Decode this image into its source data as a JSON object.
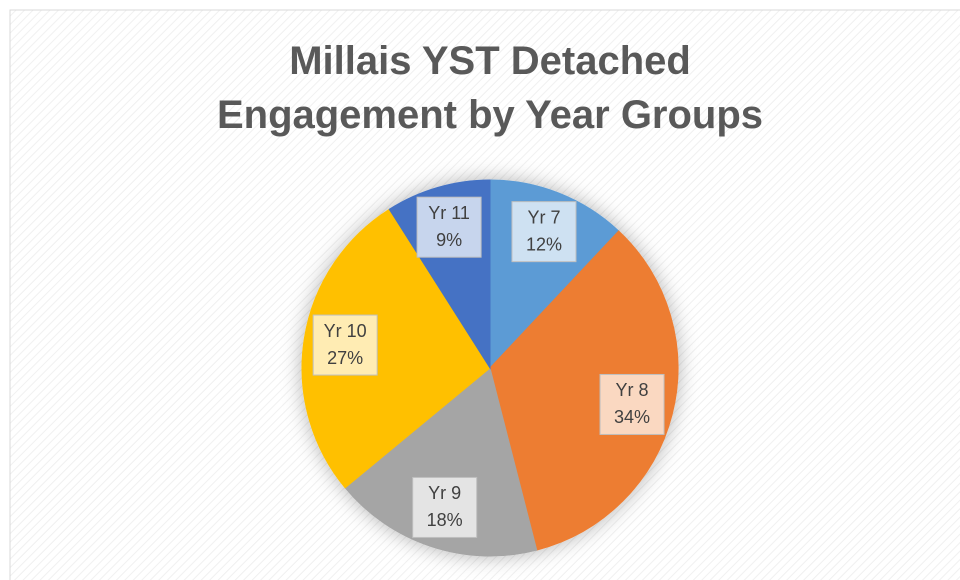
{
  "chart_data": {
    "type": "pie",
    "title": "Millais YST Detached Engagement by Year Groups",
    "categories": [
      "Yr 7",
      "Yr 8",
      "Yr 9",
      "Yr 10",
      "Yr 11"
    ],
    "values": [
      12,
      34,
      18,
      27,
      9
    ],
    "value_labels": [
      "12%",
      "34%",
      "18%",
      "27%",
      "9%"
    ],
    "colors": [
      "#5b9bd5",
      "#ed7d31",
      "#a5a5a5",
      "#ffc000",
      "#4472c4"
    ]
  }
}
